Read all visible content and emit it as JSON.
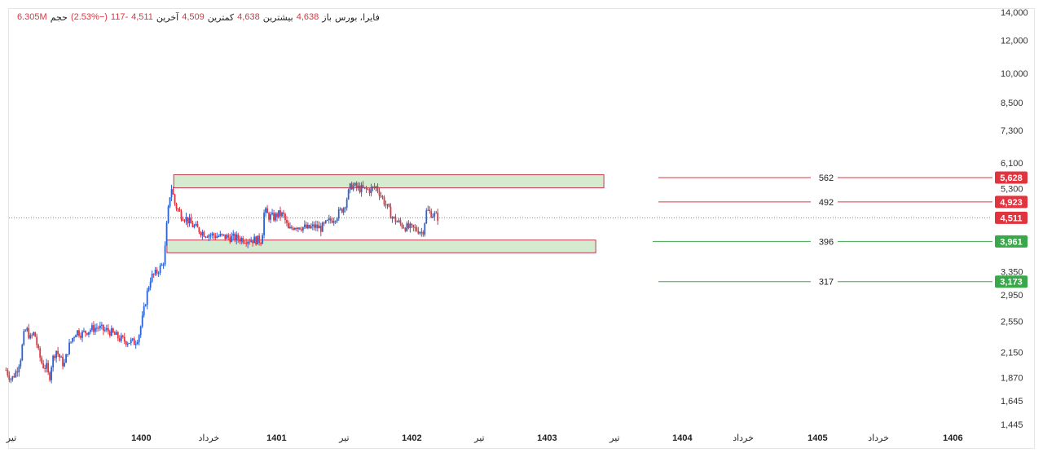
{
  "legend": {
    "symbol_label": "فایرا، بورس",
    "open_label": "باز",
    "open_value": "4,638",
    "high_label": "بیشترین",
    "high_value": "4,638",
    "low_label": "کمترین",
    "low_value": "4,509",
    "close_label": "آخرین",
    "close_value": "4,511",
    "change_value": "-117",
    "change_pct": "(−2.53%)",
    "volume_label": "حجم",
    "volume_value": "6.305M"
  },
  "colors": {
    "up": "#2a62d4",
    "down": "#e0343f",
    "resistance": "#e0343f",
    "support": "#3aa84a",
    "zone_fill": "#d4ebcf",
    "zone_stroke": "#c0394b"
  },
  "chart_data": {
    "type": "candlestick",
    "title": "",
    "xlabel": "",
    "ylabel": "",
    "y_scale": "log",
    "ylim": [
      1400,
      14500
    ],
    "y_ticks": [
      "14,000",
      "12,000",
      "10,000",
      "8,500",
      "7,300",
      "6,100",
      "5,300",
      "3,350",
      "2,950",
      "2,550",
      "2,150",
      "1,870",
      "1,645",
      "1,445"
    ],
    "y_tick_values": [
      14000,
      12000,
      10000,
      8500,
      7300,
      6100,
      5300,
      3350,
      2950,
      2550,
      2150,
      1870,
      1645,
      1445
    ],
    "x_ticks": [
      {
        "label": "تیر",
        "t": 0.04
      },
      {
        "label": "1400",
        "t": 1.0,
        "bold": true
      },
      {
        "label": "خرداد",
        "t": 1.5
      },
      {
        "label": "1401",
        "t": 2.0,
        "bold": true
      },
      {
        "label": "تیر",
        "t": 2.5
      },
      {
        "label": "1402",
        "t": 3.0,
        "bold": true
      },
      {
        "label": "تیر",
        "t": 3.5
      },
      {
        "label": "1403",
        "t": 4.0,
        "bold": true
      },
      {
        "label": "تیر",
        "t": 4.5
      },
      {
        "label": "1404",
        "t": 5.0,
        "bold": true
      },
      {
        "label": "خرداد",
        "t": 5.45
      },
      {
        "label": "1405",
        "t": 6.0,
        "bold": true
      },
      {
        "label": "خرداد",
        "t": 6.45
      },
      {
        "label": "1406",
        "t": 7.0,
        "bold": true
      }
    ],
    "t_range": [
      0,
      7.45
    ],
    "price_series": [
      [
        0.0,
        1950
      ],
      [
        0.04,
        1850
      ],
      [
        0.08,
        1950
      ],
      [
        0.11,
        2100
      ],
      [
        0.13,
        2350
      ],
      [
        0.15,
        2450
      ],
      [
        0.18,
        2320
      ],
      [
        0.21,
        2400
      ],
      [
        0.24,
        2150
      ],
      [
        0.27,
        2000
      ],
      [
        0.3,
        1980
      ],
      [
        0.32,
        1850
      ],
      [
        0.34,
        2050
      ],
      [
        0.37,
        2180
      ],
      [
        0.4,
        2080
      ],
      [
        0.43,
        2000
      ],
      [
        0.46,
        2200
      ],
      [
        0.49,
        2320
      ],
      [
        0.52,
        2420
      ],
      [
        0.56,
        2380
      ],
      [
        0.6,
        2420
      ],
      [
        0.64,
        2450
      ],
      [
        0.68,
        2470
      ],
      [
        0.72,
        2430
      ],
      [
        0.76,
        2420
      ],
      [
        0.8,
        2370
      ],
      [
        0.84,
        2320
      ],
      [
        0.88,
        2290
      ],
      [
        0.92,
        2280
      ],
      [
        0.95,
        2270
      ],
      [
        0.98,
        2350
      ],
      [
        1.01,
        2600
      ],
      [
        1.04,
        2950
      ],
      [
        1.07,
        3250
      ],
      [
        1.1,
        3300
      ],
      [
        1.13,
        3400
      ],
      [
        1.15,
        3450
      ],
      [
        1.17,
        3600
      ],
      [
        1.19,
        4400
      ],
      [
        1.22,
        5400
      ],
      [
        1.25,
        4850
      ],
      [
        1.29,
        4600
      ],
      [
        1.33,
        4500
      ],
      [
        1.37,
        4350
      ],
      [
        1.41,
        4250
      ],
      [
        1.46,
        4150
      ],
      [
        1.51,
        4110
      ],
      [
        1.56,
        4080
      ],
      [
        1.62,
        4060
      ],
      [
        1.68,
        4040
      ],
      [
        1.74,
        4020
      ],
      [
        1.8,
        4000
      ],
      [
        1.85,
        3990
      ],
      [
        1.89,
        3980
      ],
      [
        1.91,
        4700
      ],
      [
        1.94,
        4550
      ],
      [
        1.98,
        4520
      ],
      [
        2.01,
        4600
      ],
      [
        2.05,
        4580
      ],
      [
        2.09,
        4200
      ],
      [
        2.13,
        4320
      ],
      [
        2.18,
        4300
      ],
      [
        2.23,
        4250
      ],
      [
        2.28,
        4300
      ],
      [
        2.33,
        4260
      ],
      [
        2.38,
        4400
      ],
      [
        2.44,
        4550
      ],
      [
        2.5,
        4800
      ],
      [
        2.55,
        5400
      ],
      [
        2.61,
        5300
      ],
      [
        2.68,
        5250
      ],
      [
        2.74,
        5350
      ],
      [
        2.8,
        4900
      ],
      [
        2.86,
        4500
      ],
      [
        2.92,
        4350
      ],
      [
        2.96,
        4280
      ],
      [
        3.0,
        4250
      ],
      [
        3.05,
        4220
      ],
      [
        3.08,
        4150
      ],
      [
        3.11,
        4700
      ],
      [
        3.16,
        4590
      ],
      [
        3.2,
        4511
      ]
    ],
    "t_scale_note": "",
    "levels": [
      {
        "label": "562",
        "value": 5628,
        "price_label": "5,628",
        "kind": "resistance"
      },
      {
        "label": "492",
        "value": 4923,
        "price_label": "4,923",
        "kind": "resistance"
      },
      {
        "label": "396",
        "value": 3961,
        "price_label": "3,961",
        "kind": "support"
      },
      {
        "label": "317",
        "value": 3173,
        "price_label": "3,173",
        "kind": "support"
      }
    ],
    "current_price": {
      "value": 4511,
      "label": "4,511"
    },
    "zones": [
      {
        "t_start": 1.24,
        "t_end": 4.42,
        "low": 5320,
        "high": 5720
      },
      {
        "t_start": 1.19,
        "t_end": 4.36,
        "low": 3720,
        "high": 3990
      }
    ]
  }
}
